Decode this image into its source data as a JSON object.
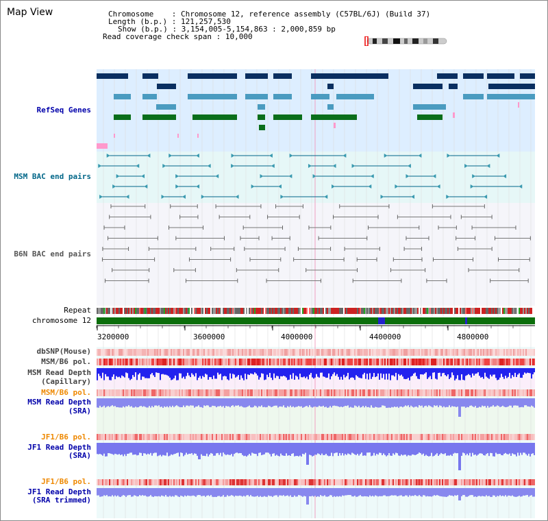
{
  "title": "Map View",
  "header": {
    "chromosome_label": "Chromosome",
    "chromosome_value": "Chromosome 12, reference assembly (C57BL/6J) (Build 37)",
    "length_label": "Length (b.p.)",
    "length_value": "121,257,530",
    "show_label": "Show (b.p.)",
    "show_value": "3,154,005-5,154,863 : 2,000,859 bp",
    "coverage_label": "Read coverage check span",
    "coverage_value": "10,000"
  },
  "tracks": {
    "refseq": "RefSeq Genes",
    "msm_bac": "MSM BAC end pairs",
    "b6n_bac": "B6N BAC end pairs",
    "repeat": "Repeat",
    "chromosome": "chromosome 12",
    "dbsnp": "dbSNP(Mouse)",
    "msm_b6_pol_1": "MSM/B6 pol.",
    "msm_depth_cap_1": "MSM Read Depth",
    "msm_depth_cap_2": "(Capillary)",
    "msm_b6_pol_2": "MSM/B6 pol.",
    "msm_depth_sra_1": "MSM Read Depth",
    "msm_depth_sra_2": "(SRA)",
    "jf1_b6_pol_1": "JF1/B6 pol.",
    "jf1_depth_sra_1": "JF1 Read Depth",
    "jf1_depth_sra_2": "(SRA)",
    "jf1_b6_pol_2": "JF1/B6 pol.",
    "jf1_depth_trim_1": "JF1 Read Depth",
    "jf1_depth_trim_2": "(SRA trimmed)"
  },
  "ruler": {
    "ticks": [
      "3200000",
      "3600000",
      "4000000",
      "4400000",
      "4800000"
    ],
    "range_start": 3154005,
    "range_end": 5154863
  },
  "colors": {
    "refseq_bg": "#ddeeff",
    "bac_bg": "#e6f7f7",
    "gene_dark": "#0a2f60",
    "gene_mid": "#4a9bc0",
    "gene_green": "#0a6e1a",
    "chromosome_green": "#0b6e0b",
    "snp_red": "#ee3333",
    "depth_blue": "#2222ee",
    "depth_light_blue": "#8888ff",
    "label_blue": "#0000aa",
    "label_orange": "#ee8800",
    "label_teal": "#006688"
  }
}
